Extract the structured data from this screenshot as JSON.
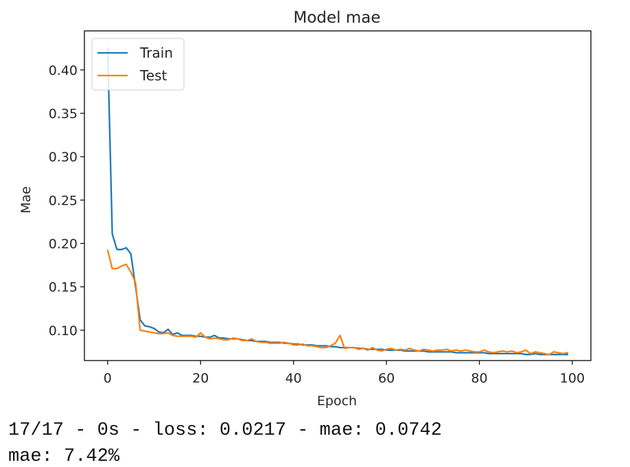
{
  "chart_data": {
    "type": "line",
    "title": "Model mae",
    "xlabel": "Epoch",
    "ylabel": "Mae",
    "xlim": [
      -5,
      104
    ],
    "ylim": [
      0.065,
      0.445
    ],
    "xticks": [
      0,
      20,
      40,
      60,
      80,
      100
    ],
    "yticks": [
      0.1,
      0.15,
      0.2,
      0.25,
      0.3,
      0.35,
      0.4
    ],
    "xtick_labels": [
      "0",
      "20",
      "40",
      "60",
      "80",
      "100"
    ],
    "ytick_labels": [
      "0.10",
      "0.15",
      "0.20",
      "0.25",
      "0.30",
      "0.35",
      "0.40"
    ],
    "legend_position": "upper-left",
    "grid": false,
    "series": [
      {
        "name": "Train",
        "color": "#1f77b4",
        "x": [
          0,
          1,
          2,
          3,
          4,
          5,
          6,
          7,
          8,
          9,
          10,
          11,
          12,
          13,
          14,
          15,
          16,
          17,
          18,
          19,
          20,
          21,
          22,
          23,
          24,
          25,
          26,
          27,
          28,
          29,
          30,
          31,
          32,
          33,
          34,
          35,
          36,
          37,
          38,
          39,
          40,
          41,
          42,
          43,
          44,
          45,
          46,
          47,
          48,
          49,
          50,
          51,
          52,
          53,
          54,
          55,
          56,
          57,
          58,
          59,
          60,
          61,
          62,
          63,
          64,
          65,
          66,
          67,
          68,
          69,
          70,
          71,
          72,
          73,
          74,
          75,
          76,
          77,
          78,
          79,
          80,
          81,
          82,
          83,
          84,
          85,
          86,
          87,
          88,
          89,
          90,
          91,
          92,
          93,
          94,
          95,
          96,
          97,
          98,
          99
        ],
        "values": [
          0.425,
          0.211,
          0.193,
          0.193,
          0.195,
          0.188,
          0.15,
          0.112,
          0.105,
          0.104,
          0.102,
          0.098,
          0.097,
          0.101,
          0.095,
          0.097,
          0.094,
          0.094,
          0.094,
          0.093,
          0.093,
          0.092,
          0.092,
          0.094,
          0.091,
          0.091,
          0.09,
          0.09,
          0.09,
          0.089,
          0.088,
          0.088,
          0.087,
          0.087,
          0.087,
          0.086,
          0.086,
          0.086,
          0.085,
          0.085,
          0.084,
          0.084,
          0.083,
          0.083,
          0.083,
          0.082,
          0.082,
          0.082,
          0.081,
          0.081,
          0.08,
          0.08,
          0.08,
          0.08,
          0.079,
          0.079,
          0.078,
          0.078,
          0.078,
          0.078,
          0.077,
          0.077,
          0.077,
          0.077,
          0.076,
          0.076,
          0.076,
          0.076,
          0.076,
          0.075,
          0.075,
          0.075,
          0.075,
          0.075,
          0.075,
          0.074,
          0.074,
          0.074,
          0.074,
          0.074,
          0.074,
          0.074,
          0.073,
          0.073,
          0.073,
          0.073,
          0.073,
          0.073,
          0.073,
          0.073,
          0.072,
          0.072,
          0.073,
          0.072,
          0.072,
          0.072,
          0.072,
          0.072,
          0.072,
          0.072
        ]
      },
      {
        "name": "Test",
        "color": "#ff7f0e",
        "x": [
          0,
          1,
          2,
          3,
          4,
          5,
          6,
          7,
          8,
          9,
          10,
          11,
          12,
          13,
          14,
          15,
          16,
          17,
          18,
          19,
          20,
          21,
          22,
          23,
          24,
          25,
          26,
          27,
          28,
          29,
          30,
          31,
          32,
          33,
          34,
          35,
          36,
          37,
          38,
          39,
          40,
          41,
          42,
          43,
          44,
          45,
          46,
          47,
          48,
          49,
          50,
          51,
          52,
          53,
          54,
          55,
          56,
          57,
          58,
          59,
          60,
          61,
          62,
          63,
          64,
          65,
          66,
          67,
          68,
          69,
          70,
          71,
          72,
          73,
          74,
          75,
          76,
          77,
          78,
          79,
          80,
          81,
          82,
          83,
          84,
          85,
          86,
          87,
          88,
          89,
          90,
          91,
          92,
          93,
          94,
          95,
          96,
          97,
          98,
          99
        ],
        "values": [
          0.192,
          0.171,
          0.171,
          0.174,
          0.176,
          0.167,
          0.155,
          0.1,
          0.099,
          0.098,
          0.097,
          0.096,
          0.096,
          0.097,
          0.094,
          0.093,
          0.093,
          0.093,
          0.093,
          0.092,
          0.097,
          0.092,
          0.09,
          0.091,
          0.09,
          0.089,
          0.089,
          0.091,
          0.09,
          0.088,
          0.088,
          0.09,
          0.087,
          0.086,
          0.086,
          0.085,
          0.085,
          0.085,
          0.086,
          0.085,
          0.083,
          0.083,
          0.084,
          0.082,
          0.082,
          0.081,
          0.08,
          0.08,
          0.082,
          0.085,
          0.094,
          0.079,
          0.08,
          0.08,
          0.078,
          0.079,
          0.077,
          0.08,
          0.077,
          0.076,
          0.078,
          0.079,
          0.077,
          0.078,
          0.077,
          0.079,
          0.077,
          0.076,
          0.078,
          0.077,
          0.076,
          0.077,
          0.077,
          0.078,
          0.076,
          0.077,
          0.076,
          0.077,
          0.076,
          0.075,
          0.075,
          0.077,
          0.075,
          0.074,
          0.075,
          0.076,
          0.075,
          0.076,
          0.074,
          0.075,
          0.077,
          0.073,
          0.075,
          0.074,
          0.073,
          0.072,
          0.075,
          0.074,
          0.073,
          0.074
        ]
      }
    ]
  },
  "console": {
    "line1": "17/17 - 0s - loss: 0.0217 - mae: 0.0742",
    "line2": "mae: 7.42%"
  }
}
